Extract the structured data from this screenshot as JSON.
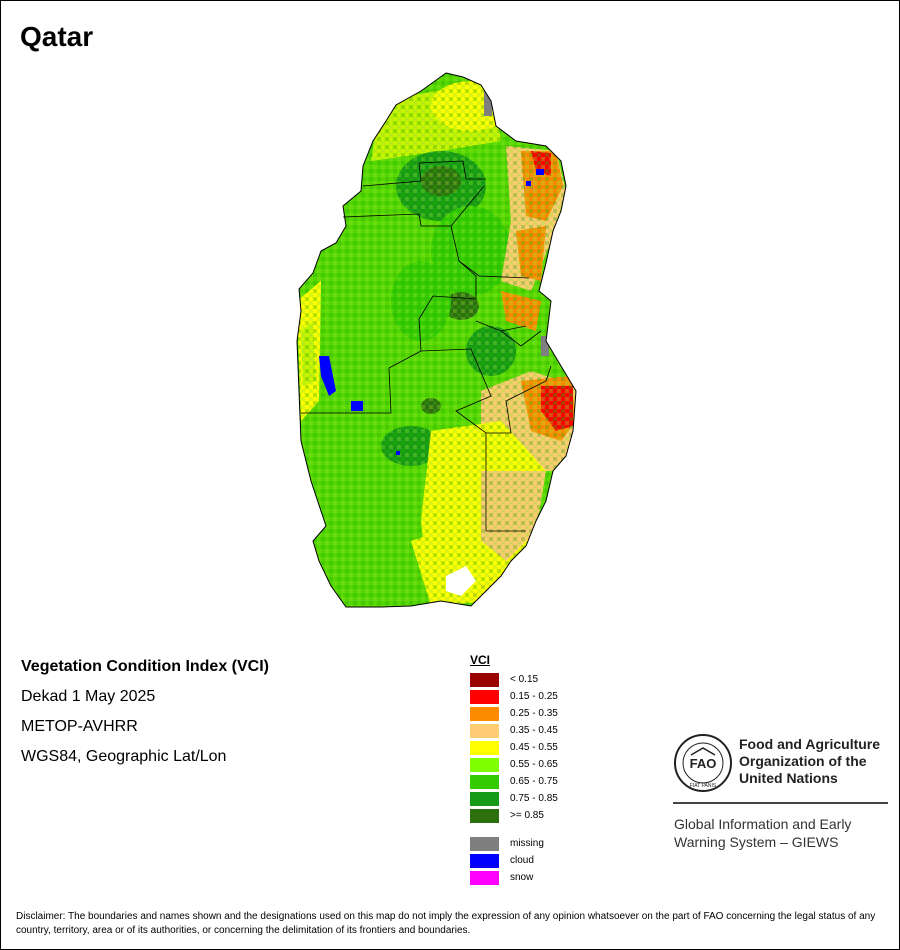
{
  "map": {
    "title": "Qatar",
    "info": {
      "index_name": "Vegetation Condition Index (VCI)",
      "dekad": "Dekad 1 May 2025",
      "sensor": "METOP-AVHRR",
      "projection": "WGS84, Geographic Lat/Lon"
    }
  },
  "legend": {
    "title": "VCI",
    "classes": [
      {
        "label": "< 0.15",
        "color": "#990000"
      },
      {
        "label": "0.15 - 0.25",
        "color": "#ff0000"
      },
      {
        "label": "0.25 - 0.35",
        "color": "#ff8c00"
      },
      {
        "label": "0.35 - 0.45",
        "color": "#ffcc73"
      },
      {
        "label": "0.45 - 0.55",
        "color": "#ffff00"
      },
      {
        "label": "0.55 - 0.65",
        "color": "#7fff00"
      },
      {
        "label": "0.65 - 0.75",
        "color": "#33cc00"
      },
      {
        "label": "0.75 - 0.85",
        "color": "#169b16"
      },
      {
        "label": ">= 0.85",
        "color": "#2e7010"
      }
    ],
    "extra": [
      {
        "label": "missing",
        "color": "#7f7f7f"
      },
      {
        "label": "cloud",
        "color": "#0000ff"
      },
      {
        "label": "snow",
        "color": "#ff00ff"
      }
    ]
  },
  "organization": {
    "logo_text": "FAO",
    "logo_motto": "FIAT PANIS",
    "name_line1": "Food and Agriculture",
    "name_line2": "Organization of the",
    "name_line3": "United Nations",
    "system_line1": "Global Information and Early",
    "system_line2": "Warning System – GIEWS"
  },
  "disclaimer": "Disclaimer: The boundaries and names shown and the designations used on this map do not imply the expression of any opinion whatsoever on the part of FAO concerning the legal status of any country, territory, area or of its authorities, or concerning the delimitation of its frontiers and boundaries."
}
